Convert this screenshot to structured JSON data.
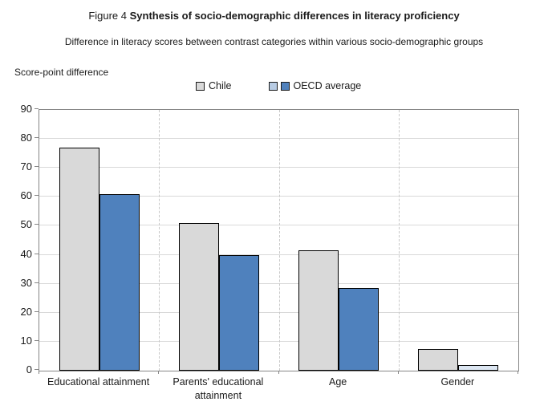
{
  "figure": {
    "title_prefix": "Figure 4 ",
    "title_bold": "Synthesis of socio-demographic differences in literacy proficiency",
    "subtitle": "Difference in literacy scores between contrast categories within various socio-demographic groups",
    "axis_title": "Score-point difference"
  },
  "legend": {
    "items": [
      {
        "label": "Chile",
        "swatches": [
          "#d9d9d9"
        ]
      },
      {
        "label": "OECD average",
        "swatches": [
          "#b8cce4",
          "#4f81bd"
        ]
      }
    ]
  },
  "chart_data": {
    "type": "bar",
    "title": "Figure 4 Synthesis of socio-demographic differences in literacy proficiency",
    "subtitle": "Difference in literacy scores between contrast categories within various socio-demographic groups",
    "ylabel": "Score-point difference",
    "xlabel": "",
    "categories": [
      "Educational attainment",
      "Parents' educational attainment",
      "Age",
      "Gender"
    ],
    "series": [
      {
        "name": "Chile",
        "values": [
          77,
          51,
          41.5,
          7.5
        ],
        "bar_colors": [
          "#d9d9d9",
          "#d9d9d9",
          "#d9d9d9",
          "#d9d9d9"
        ]
      },
      {
        "name": "OECD average",
        "values": [
          61,
          40,
          28.5,
          2
        ],
        "bar_colors": [
          "#4f81bd",
          "#4f81bd",
          "#4f81bd",
          "#dce6f2"
        ]
      }
    ],
    "ylim": [
      0,
      90
    ],
    "ytick_step": 10,
    "grid": "horizontal-solid-plus-vertical-dashed-category-separators",
    "legend_position": "top",
    "bar_border_color": "#000000",
    "plot_border_color": "#868686",
    "gridline_color": "#d9d9d9"
  }
}
